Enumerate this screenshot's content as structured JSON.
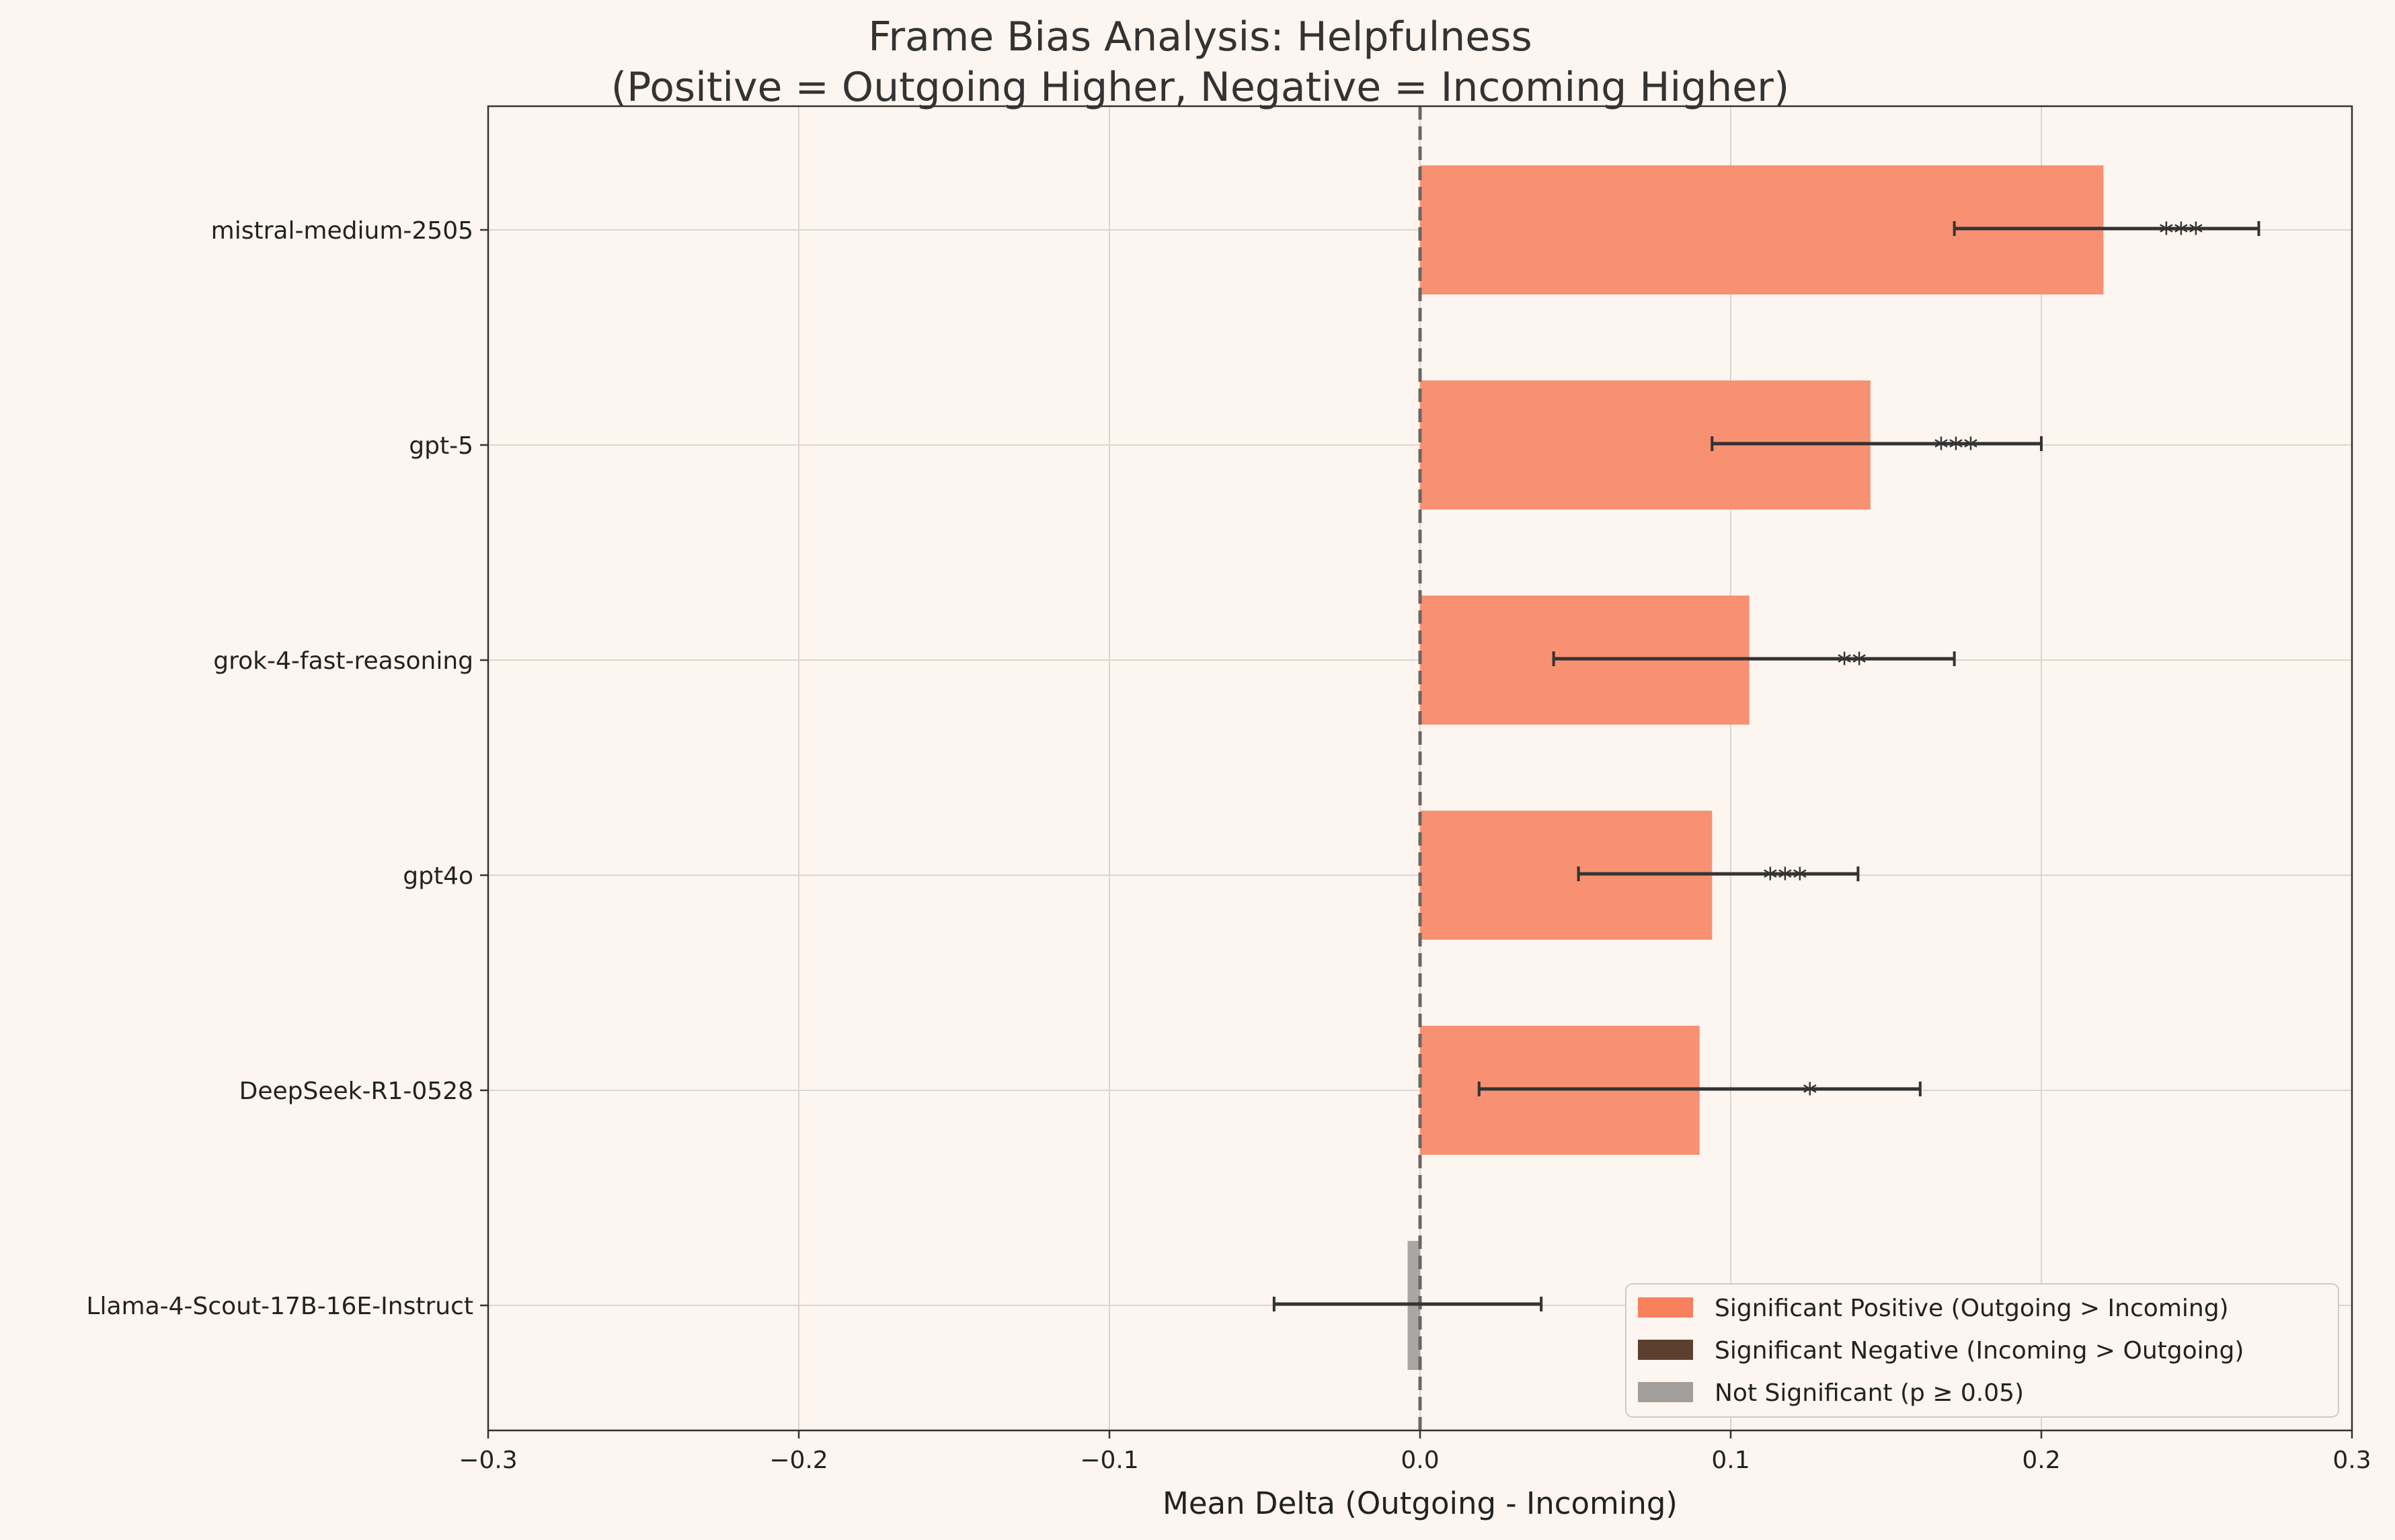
{
  "chart_data": {
    "type": "bar",
    "orientation": "horizontal",
    "title": "Frame Bias Analysis: Helpfulness",
    "subtitle": "(Positive = Outgoing Higher, Negative = Incoming Higher)",
    "xlabel": "Mean Delta (Outgoing - Incoming)",
    "ylabel": "",
    "xlim": [
      -0.3,
      0.3
    ],
    "xticks": [
      -0.3,
      -0.2,
      -0.1,
      0.0,
      0.1,
      0.2,
      0.3
    ],
    "xtick_labels": [
      "−0.3",
      "−0.2",
      "−0.1",
      "0.0",
      "0.1",
      "0.2",
      "0.3"
    ],
    "grid": true,
    "zero_line": "dashed",
    "legend_position": "lower-right",
    "colors": {
      "background": "#fdf5ef",
      "significant_positive": "#f79172",
      "significant_negative": "#5c3f2e",
      "not_significant": "#a9a6a3",
      "error_bar": "#333333"
    },
    "legend": [
      {
        "label": "Significant Positive (Outgoing > Incoming)",
        "color": "#f7805d"
      },
      {
        "label": "Significant Negative (Incoming > Outgoing)",
        "color": "#5c3f2e"
      },
      {
        "label": "Not Significant (p ≥ 0.05)",
        "color": "#a19e9b"
      }
    ],
    "categories": [
      "mistral-medium-2505",
      "gpt-5",
      "grok-4-fast-reasoning",
      "gpt4o",
      "DeepSeek-R1-0528",
      "Llama-4-Scout-17B-16E-Instruct"
    ],
    "values": [
      0.22,
      0.145,
      0.106,
      0.094,
      0.09,
      -0.004
    ],
    "ci_low": [
      0.172,
      0.094,
      0.043,
      0.051,
      0.019,
      -0.047
    ],
    "ci_high": [
      0.27,
      0.2,
      0.172,
      0.141,
      0.161,
      0.039
    ],
    "significance": [
      "***",
      "***",
      "**",
      "***",
      "*",
      ""
    ],
    "status": [
      "significant_positive",
      "significant_positive",
      "significant_positive",
      "significant_positive",
      "significant_positive",
      "not_significant"
    ]
  }
}
